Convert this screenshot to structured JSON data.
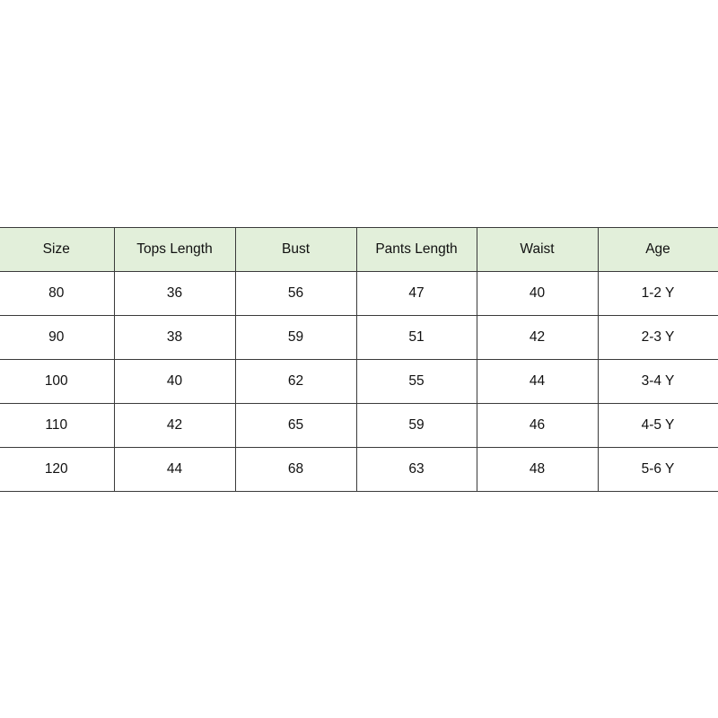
{
  "header_bg": "#e2efda",
  "columns": [
    "Size",
    "Tops Length",
    "Bust",
    "Pants Length",
    "Waist",
    "Age"
  ],
  "rows": [
    [
      "80",
      "36",
      "56",
      "47",
      "40",
      "1-2 Y"
    ],
    [
      "90",
      "38",
      "59",
      "51",
      "42",
      "2-3 Y"
    ],
    [
      "100",
      "40",
      "62",
      "55",
      "44",
      "3-4 Y"
    ],
    [
      "110",
      "42",
      "65",
      "59",
      "46",
      "4-5 Y"
    ],
    [
      "120",
      "44",
      "68",
      "63",
      "48",
      "5-6 Y"
    ]
  ]
}
